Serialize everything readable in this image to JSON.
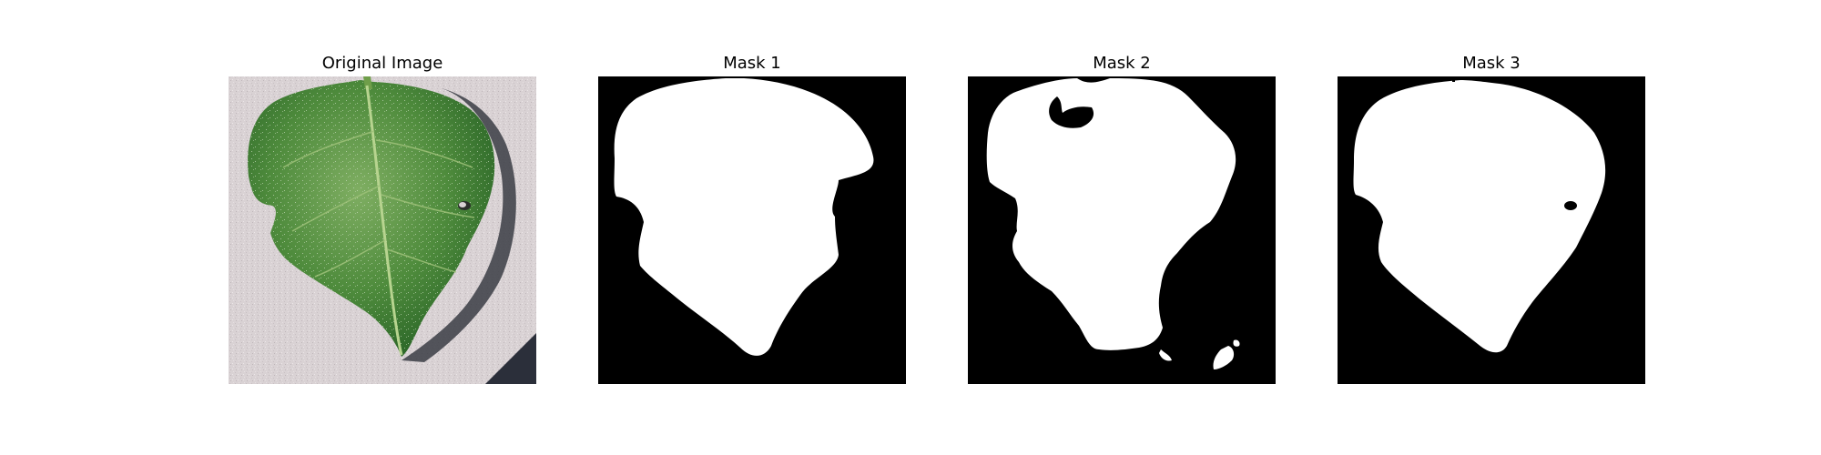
{
  "figure": {
    "panels": [
      {
        "title": "Original Image",
        "kind": "photo"
      },
      {
        "title": "Mask 1",
        "kind": "mask"
      },
      {
        "title": "Mask 2",
        "kind": "mask"
      },
      {
        "title": "Mask 3",
        "kind": "mask"
      }
    ]
  },
  "colors": {
    "background": "#ffffff",
    "mask_background": "#000000",
    "mask_foreground": "#ffffff",
    "leaf": "#4a8a3a",
    "surface": "#d8d2d3",
    "shadow": "#2a2d36"
  }
}
